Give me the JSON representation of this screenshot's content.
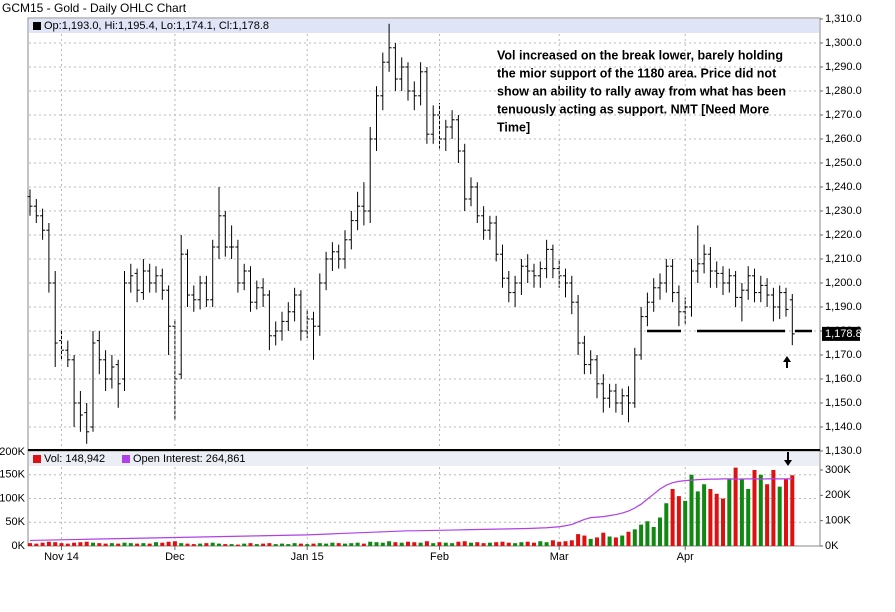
{
  "chart_data": [
    {
      "type": "ohlc",
      "title": "GCM15 - Gold - Daily OHLC Chart",
      "legend": "Op:1,193.0, Hi:1,195.4, Lo:1,174.1, Cl:1,178.8",
      "last_label": "1,178.8",
      "annotation": [
        "Vol increased on the break lower, barely holding",
        "the mior support of the 1180 area.  Price did not",
        "show an ability to rally away from what has been",
        "tenuously acting as support.  NMT [Need More",
        "Time]"
      ],
      "support_level": 1180,
      "color": "#000000",
      "ylim": [
        1130,
        1310
      ],
      "yticks": [
        {
          "value": 1130,
          "label": "1,130.0"
        },
        {
          "value": 1140,
          "label": "1,140.0"
        },
        {
          "value": 1150,
          "label": "1,150.0"
        },
        {
          "value": 1160,
          "label": "1,160.0"
        },
        {
          "value": 1170,
          "label": "1,170.0"
        },
        {
          "value": 1180,
          "label": "1,180.0"
        },
        {
          "value": 1190,
          "label": "1,190.0"
        },
        {
          "value": 1200,
          "label": "1,200.0"
        },
        {
          "value": 1210,
          "label": "1,210.0"
        },
        {
          "value": 1220,
          "label": "1,220.0"
        },
        {
          "value": 1230,
          "label": "1,230.0"
        },
        {
          "value": 1240,
          "label": "1,240.0"
        },
        {
          "value": 1250,
          "label": "1,250.0"
        },
        {
          "value": 1260,
          "label": "1,260.0"
        },
        {
          "value": 1270,
          "label": "1,270.0"
        },
        {
          "value": 1280,
          "label": "1,280.0"
        },
        {
          "value": 1290,
          "label": "1,290.0"
        },
        {
          "value": 1300,
          "label": "1,300.0"
        },
        {
          "value": 1310,
          "label": "1,310.0"
        }
      ],
      "grid": true,
      "open": [
        1236,
        1232,
        1228,
        1222,
        1200,
        1176,
        1172,
        1168,
        1150,
        1146,
        1140,
        1176,
        1168,
        1160,
        1166,
        1160,
        1200,
        1204,
        1196,
        1205,
        1200,
        1203,
        1197,
        1182,
        1162,
        1212,
        1195,
        1193,
        1200,
        1193,
        1215,
        1228,
        1215,
        1215,
        1200,
        1205,
        1192,
        1198,
        1195,
        1178,
        1180,
        1184,
        1188,
        1195,
        1180,
        1185,
        1182,
        1200,
        1210,
        1213,
        1210,
        1218,
        1226,
        1232,
        1230,
        1260,
        1278,
        1292,
        1298,
        1285,
        1290,
        1280,
        1278,
        1288,
        1262,
        1270,
        1260,
        1265,
        1268,
        1255,
        1235,
        1240,
        1228,
        1222,
        1225,
        1212,
        1202,
        1196,
        1200,
        1207,
        1205,
        1203,
        1206,
        1214,
        1206,
        1203,
        1200,
        1192,
        1175,
        1166,
        1168,
        1158,
        1152,
        1155,
        1150,
        1153,
        1150,
        1170,
        1186,
        1192,
        1198,
        1200,
        1207,
        1196,
        1188,
        1190,
        1205,
        1208,
        1212,
        1205,
        1204,
        1200,
        1203,
        1194,
        1197,
        1203,
        1196,
        1199,
        1195,
        1190,
        1196,
        1193
      ],
      "high": [
        1239,
        1235,
        1231,
        1225,
        1205,
        1180,
        1176,
        1170,
        1155,
        1150,
        1180,
        1180,
        1172,
        1170,
        1168,
        1205,
        1208,
        1206,
        1210,
        1208,
        1207,
        1206,
        1199,
        1185,
        1220,
        1214,
        1199,
        1203,
        1203,
        1218,
        1240,
        1230,
        1224,
        1218,
        1208,
        1207,
        1201,
        1202,
        1197,
        1184,
        1188,
        1192,
        1198,
        1197,
        1189,
        1188,
        1204,
        1213,
        1217,
        1216,
        1222,
        1230,
        1238,
        1242,
        1265,
        1282,
        1296,
        1308,
        1300,
        1294,
        1292,
        1284,
        1292,
        1290,
        1274,
        1275,
        1268,
        1272,
        1270,
        1258,
        1244,
        1242,
        1232,
        1228,
        1228,
        1216,
        1205,
        1203,
        1210,
        1212,
        1208,
        1209,
        1218,
        1216,
        1210,
        1206,
        1203,
        1195,
        1178,
        1172,
        1170,
        1162,
        1158,
        1158,
        1156,
        1157,
        1173,
        1190,
        1196,
        1202,
        1204,
        1210,
        1210,
        1199,
        1194,
        1210,
        1224,
        1216,
        1215,
        1209,
        1207,
        1206,
        1205,
        1200,
        1207,
        1206,
        1203,
        1202,
        1198,
        1199,
        1198,
        1195.4
      ],
      "low": [
        1228,
        1225,
        1218,
        1196,
        1165,
        1168,
        1165,
        1140,
        1138,
        1133,
        1138,
        1162,
        1155,
        1156,
        1148,
        1155,
        1196,
        1192,
        1193,
        1196,
        1196,
        1193,
        1170,
        1143,
        1160,
        1190,
        1188,
        1189,
        1190,
        1190,
        1210,
        1211,
        1210,
        1196,
        1197,
        1188,
        1189,
        1190,
        1172,
        1174,
        1176,
        1180,
        1184,
        1176,
        1177,
        1168,
        1178,
        1197,
        1205,
        1206,
        1206,
        1214,
        1222,
        1224,
        1225,
        1255,
        1272,
        1288,
        1280,
        1280,
        1276,
        1272,
        1274,
        1258,
        1258,
        1256,
        1255,
        1260,
        1250,
        1230,
        1232,
        1225,
        1218,
        1218,
        1209,
        1198,
        1192,
        1190,
        1195,
        1200,
        1198,
        1198,
        1202,
        1202,
        1198,
        1194,
        1187,
        1170,
        1162,
        1162,
        1152,
        1146,
        1148,
        1146,
        1145,
        1142,
        1148,
        1168,
        1182,
        1188,
        1193,
        1196,
        1192,
        1182,
        1183,
        1186,
        1200,
        1204,
        1198,
        1198,
        1195,
        1196,
        1190,
        1184,
        1193,
        1192,
        1192,
        1190,
        1184,
        1185,
        1186,
        1174.1
      ],
      "close": [
        1232,
        1228,
        1222,
        1200,
        1175,
        1172,
        1168,
        1150,
        1145,
        1138,
        1175,
        1168,
        1160,
        1165,
        1158,
        1200,
        1203,
        1197,
        1205,
        1200,
        1203,
        1197,
        1182,
        1160,
        1212,
        1195,
        1193,
        1200,
        1193,
        1215,
        1228,
        1215,
        1215,
        1200,
        1205,
        1192,
        1198,
        1195,
        1178,
        1180,
        1184,
        1188,
        1195,
        1180,
        1185,
        1182,
        1200,
        1210,
        1213,
        1210,
        1218,
        1226,
        1232,
        1230,
        1260,
        1278,
        1292,
        1298,
        1285,
        1290,
        1280,
        1278,
        1288,
        1262,
        1270,
        1260,
        1265,
        1268,
        1255,
        1235,
        1240,
        1228,
        1222,
        1225,
        1212,
        1202,
        1196,
        1200,
        1207,
        1205,
        1203,
        1206,
        1214,
        1206,
        1203,
        1200,
        1192,
        1175,
        1166,
        1168,
        1158,
        1152,
        1155,
        1150,
        1153,
        1150,
        1170,
        1186,
        1192,
        1198,
        1200,
        1207,
        1196,
        1188,
        1190,
        1205,
        1208,
        1212,
        1205,
        1204,
        1200,
        1203,
        1194,
        1197,
        1203,
        1196,
        1199,
        1195,
        1190,
        1196,
        1189,
        1178.8
      ]
    },
    {
      "type": "bar",
      "categories": [
        null,
        null,
        null,
        null,
        null,
        "Nov 14",
        null,
        null,
        null,
        null,
        null,
        null,
        null,
        null,
        null,
        null,
        null,
        null,
        null,
        null,
        null,
        null,
        null,
        "Dec",
        null,
        null,
        null,
        null,
        null,
        null,
        null,
        null,
        null,
        null,
        null,
        null,
        null,
        null,
        null,
        null,
        null,
        null,
        null,
        null,
        "Jan 15",
        null,
        null,
        null,
        null,
        null,
        null,
        null,
        null,
        null,
        null,
        null,
        null,
        null,
        null,
        null,
        null,
        null,
        null,
        null,
        null,
        "Feb",
        null,
        null,
        null,
        null,
        null,
        null,
        null,
        null,
        null,
        null,
        null,
        null,
        null,
        null,
        null,
        null,
        null,
        null,
        "Mar",
        null,
        null,
        null,
        null,
        null,
        null,
        null,
        null,
        null,
        null,
        null,
        null,
        null,
        null,
        null,
        null,
        null,
        null,
        null,
        "Apr",
        null,
        null,
        null,
        null,
        null,
        null,
        null,
        null,
        null,
        null,
        null,
        null,
        null,
        null,
        null,
        null,
        null
      ],
      "ylim": [
        0,
        200000
      ],
      "yticks": [
        {
          "value": 0,
          "label": "0K"
        },
        {
          "value": 50000,
          "label": "50K"
        },
        {
          "value": 100000,
          "label": "100K"
        },
        {
          "value": 150000,
          "label": "150K"
        },
        {
          "value": 200000,
          "label": "200K"
        }
      ],
      "y2lim": [
        0,
        375000
      ],
      "y2ticks": [
        {
          "value": 0,
          "label": "0K"
        },
        {
          "value": 100000,
          "label": "100K"
        },
        {
          "value": 200000,
          "label": "200K"
        },
        {
          "value": 300000,
          "label": "300K"
        }
      ],
      "series": [
        {
          "name": "Vol: 148,942",
          "color": "#dd1111",
          "up_color": "#118811",
          "values": [
            6000,
            5000,
            7000,
            9000,
            8000,
            6000,
            5000,
            7000,
            8000,
            9000,
            7000,
            6000,
            5000,
            6000,
            5000,
            7000,
            6000,
            5000,
            6000,
            5000,
            8000,
            7000,
            9000,
            10000,
            6000,
            5000,
            4000,
            5000,
            6000,
            7000,
            5000,
            4000,
            4000,
            3000,
            5000,
            6000,
            4000,
            5000,
            6000,
            4000,
            5000,
            4000,
            6000,
            5000,
            4000,
            5000,
            6000,
            5000,
            7000,
            6000,
            5000,
            6000,
            7000,
            5000,
            9000,
            8000,
            7000,
            10000,
            8000,
            7000,
            9000,
            8000,
            7000,
            10000,
            6000,
            8000,
            7000,
            6000,
            9000,
            10000,
            7000,
            8000,
            6000,
            7000,
            8000,
            9000,
            7000,
            6000,
            8000,
            9000,
            7000,
            10000,
            8000,
            12000,
            9000,
            10000,
            12000,
            25000,
            22000,
            15000,
            18000,
            28000,
            20000,
            18000,
            22000,
            30000,
            35000,
            45000,
            52000,
            40000,
            60000,
            90000,
            120000,
            105000,
            95000,
            150000,
            115000,
            130000,
            120000,
            110000,
            100000,
            140000,
            165000,
            140000,
            120000,
            160000,
            150000,
            130000,
            160000,
            125000,
            140000,
            148942
          ]
        },
        {
          "name": "Open Interest: 264,861",
          "color": "#b040e8",
          "axis": "y2",
          "values": [
            22000,
            22500,
            23000,
            23500,
            24000,
            24500,
            25000,
            25500,
            26000,
            26500,
            27000,
            27500,
            28000,
            28500,
            29000,
            29500,
            30000,
            30500,
            31000,
            31500,
            32000,
            32500,
            33000,
            33500,
            34000,
            34500,
            35000,
            35500,
            36000,
            36500,
            37000,
            37500,
            38000,
            38500,
            39000,
            39500,
            40000,
            40500,
            41000,
            41500,
            42000,
            42500,
            43000,
            43500,
            44000,
            45000,
            46000,
            47000,
            48000,
            49000,
            50000,
            51000,
            52000,
            53000,
            54000,
            55000,
            56000,
            57000,
            58000,
            59000,
            60000,
            60000,
            60500,
            61000,
            61500,
            62000,
            62500,
            63000,
            63500,
            64000,
            64500,
            65000,
            65500,
            66000,
            66500,
            67000,
            67500,
            68000,
            68500,
            69000,
            70000,
            71000,
            72000,
            74000,
            76000,
            80000,
            85000,
            95000,
            105000,
            112000,
            114000,
            116000,
            120000,
            124000,
            130000,
            138000,
            150000,
            165000,
            185000,
            205000,
            225000,
            240000,
            250000,
            255000,
            258000,
            260000,
            262000,
            263000,
            264000,
            264000,
            265000,
            265000,
            264000,
            264500,
            265000,
            265000,
            264500,
            265000,
            265500,
            265000,
            264900,
            264861
          ]
        }
      ]
    }
  ]
}
